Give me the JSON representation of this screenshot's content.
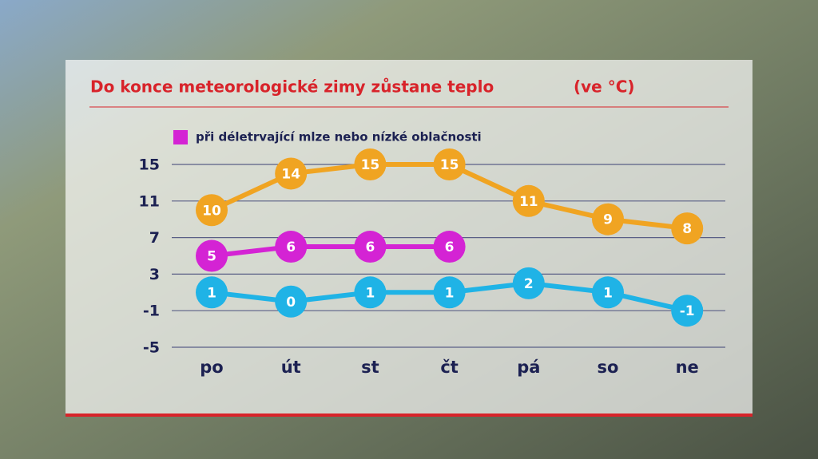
{
  "chart_data": {
    "type": "line",
    "title": "Do konce meteorologické zimy zůstane teplo",
    "subtitle": "(ve °C)",
    "categories": [
      "po",
      "út",
      "st",
      "čt",
      "pá",
      "so",
      "ne"
    ],
    "series": [
      {
        "color": "#f0a422",
        "values": [
          10,
          14,
          15,
          15,
          11,
          9,
          8
        ]
      },
      {
        "name": "při déletrvající mlze nebo nízké oblačnosti",
        "color": "#d423d4",
        "values": [
          5,
          6,
          6,
          6,
          null,
          null,
          null
        ]
      },
      {
        "color": "#1fb3e6",
        "values": [
          1,
          0,
          1,
          1,
          2,
          1,
          -1
        ]
      }
    ],
    "ylim": [
      -5,
      15
    ],
    "yticks": [
      15,
      11,
      7,
      3,
      -1,
      -5
    ],
    "grid": true
  }
}
